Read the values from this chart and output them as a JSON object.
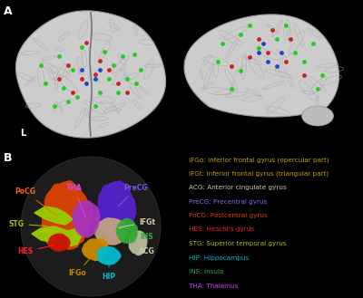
{
  "background_color": "#000000",
  "panel_a_label": "A",
  "panel_b_label": "B",
  "panel_a_sublabel": "L",
  "legend_entries": [
    {
      "text": "IFGo: Inferior frontal gyrus (opercular part)",
      "color": "#C8A000"
    },
    {
      "text": "IFGt: Inferior frontal gyrus (triangular part)",
      "color": "#C8A000"
    },
    {
      "text": "ACG: Anterior cingulate gyrus",
      "color": "#C8C8AA"
    },
    {
      "text": "PreCG: Precentral gyrus",
      "color": "#8866EE"
    },
    {
      "text": "PoCG: Postcentral gyrus",
      "color": "#DD4400"
    },
    {
      "text": "HES: Heschl's gyrus",
      "color": "#FF2222"
    },
    {
      "text": "STG: Superior temporal gyrus",
      "color": "#99CC00"
    },
    {
      "text": "HIP: Hippocampus",
      "color": "#00BBCC"
    },
    {
      "text": "INS: Insula",
      "color": "#33AA33"
    },
    {
      "text": "THA: Thalamus",
      "color": "#CC44FF"
    }
  ],
  "brain_b_regions": [
    {
      "name": "PoCG",
      "color": "#DD4400"
    },
    {
      "name": "STG",
      "color": "#99CC00"
    },
    {
      "name": "HES",
      "color": "#CC1100"
    },
    {
      "name": "THA",
      "color": "#AA33BB"
    },
    {
      "name": "IFGo",
      "color": "#CC8800"
    },
    {
      "name": "IFGt",
      "color": "#C8A882"
    },
    {
      "name": "PreCG",
      "color": "#6633CC"
    },
    {
      "name": "INS",
      "color": "#33AA33"
    },
    {
      "name": "HIP",
      "color": "#00BBCC"
    },
    {
      "name": "ACG",
      "color": "#CCCCAA"
    }
  ],
  "figsize": [
    4.0,
    3.29
  ],
  "dpi": 100
}
